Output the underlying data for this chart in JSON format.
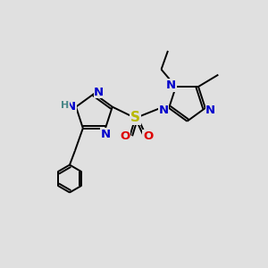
{
  "bg_color": "#e0e0e0",
  "bond_color": "#000000",
  "N_color": "#0000cc",
  "S_color": "#b8b800",
  "O_color": "#dd0000",
  "H_color": "#4a8888",
  "lw": 1.4,
  "fs": 9.5,
  "figsize": [
    3.0,
    3.0
  ],
  "dpi": 100,
  "xlim": [
    -1.5,
    8.5
  ],
  "ylim": [
    -1.0,
    8.0
  ]
}
